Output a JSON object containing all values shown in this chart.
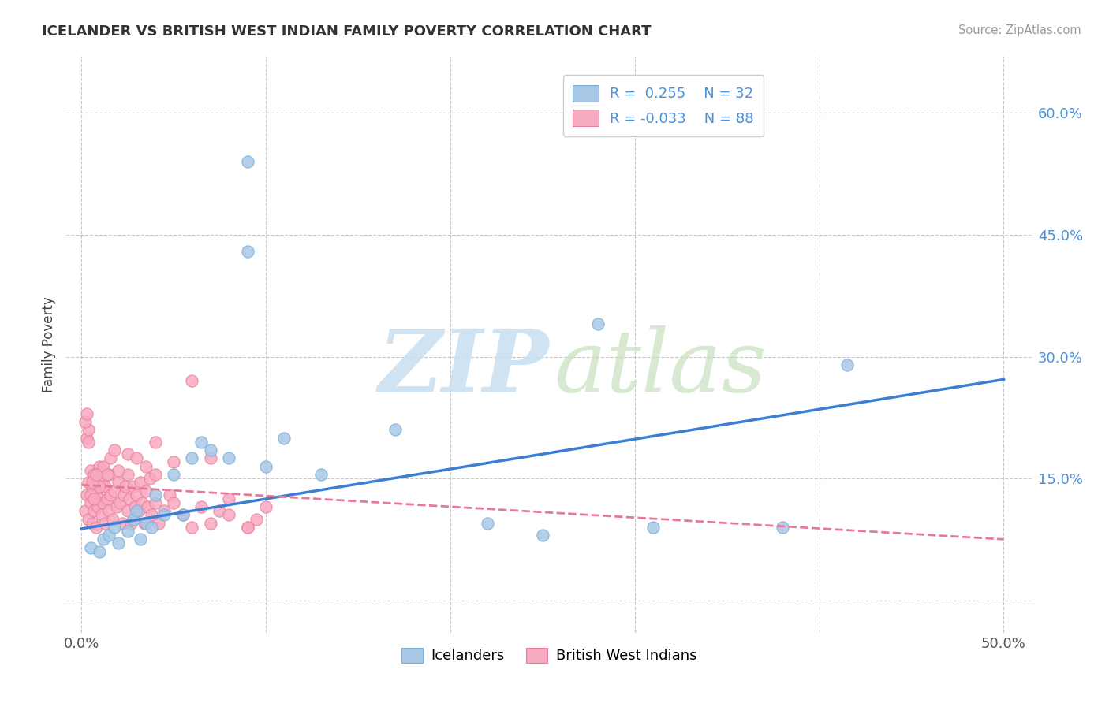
{
  "title": "ICELANDER VS BRITISH WEST INDIAN FAMILY POVERTY CORRELATION CHART",
  "source": "Source: ZipAtlas.com",
  "ylabel": "Family Poverty",
  "y_tick_positions": [
    0.0,
    0.15,
    0.3,
    0.45,
    0.6
  ],
  "y_tick_labels_right": [
    "",
    "15.0%",
    "30.0%",
    "45.0%",
    "60.0%"
  ],
  "x_tick_positions": [
    0.0,
    0.1,
    0.2,
    0.3,
    0.4,
    0.5
  ],
  "x_tick_labels": [
    "0.0%",
    "",
    "",
    "",
    "",
    "50.0%"
  ],
  "xlim": [
    -0.008,
    0.515
  ],
  "ylim": [
    -0.04,
    0.67
  ],
  "icelander_color": "#a8c8e8",
  "icelander_edge": "#7aaed4",
  "bwi_color": "#f8aac0",
  "bwi_edge": "#e8809a",
  "icelander_line_color": "#3a7fd5",
  "bwi_line_color": "#e87898",
  "legend_label_icelander": "Icelanders",
  "legend_label_bwi": "British West Indians",
  "watermark_zip": "ZIP",
  "watermark_atlas": "atlas",
  "ice_line_x0": 0.0,
  "ice_line_y0": 0.088,
  "ice_line_x1": 0.5,
  "ice_line_y1": 0.272,
  "bwi_line_x0": 0.0,
  "bwi_line_y0": 0.142,
  "bwi_line_x1": 0.5,
  "bwi_line_y1": 0.075,
  "icelander_x": [
    0.005,
    0.01,
    0.012,
    0.015,
    0.018,
    0.02,
    0.025,
    0.028,
    0.03,
    0.032,
    0.035,
    0.038,
    0.04,
    0.045,
    0.05,
    0.055,
    0.06,
    0.065,
    0.07,
    0.08,
    0.09,
    0.1,
    0.11,
    0.13,
    0.09,
    0.17,
    0.22,
    0.25,
    0.28,
    0.31,
    0.38,
    0.415
  ],
  "icelander_y": [
    0.065,
    0.06,
    0.075,
    0.08,
    0.09,
    0.07,
    0.085,
    0.1,
    0.11,
    0.075,
    0.095,
    0.09,
    0.13,
    0.105,
    0.155,
    0.105,
    0.175,
    0.195,
    0.185,
    0.175,
    0.54,
    0.165,
    0.2,
    0.155,
    0.43,
    0.21,
    0.095,
    0.08,
    0.34,
    0.09,
    0.09,
    0.29
  ],
  "bwi_x": [
    0.002,
    0.003,
    0.004,
    0.004,
    0.005,
    0.005,
    0.006,
    0.006,
    0.007,
    0.007,
    0.008,
    0.008,
    0.009,
    0.009,
    0.01,
    0.01,
    0.011,
    0.011,
    0.012,
    0.012,
    0.013,
    0.013,
    0.014,
    0.015,
    0.015,
    0.016,
    0.017,
    0.018,
    0.019,
    0.02,
    0.021,
    0.022,
    0.023,
    0.024,
    0.025,
    0.025,
    0.026,
    0.027,
    0.028,
    0.029,
    0.03,
    0.031,
    0.032,
    0.033,
    0.034,
    0.035,
    0.036,
    0.037,
    0.038,
    0.04,
    0.042,
    0.045,
    0.048,
    0.05,
    0.055,
    0.06,
    0.065,
    0.07,
    0.075,
    0.08,
    0.09,
    0.095,
    0.1,
    0.04,
    0.05,
    0.06,
    0.07,
    0.08,
    0.09,
    0.02,
    0.025,
    0.03,
    0.035,
    0.04,
    0.01,
    0.012,
    0.014,
    0.016,
    0.018,
    0.005,
    0.006,
    0.007,
    0.008,
    0.003,
    0.004,
    0.002,
    0.003,
    0.004
  ],
  "bwi_y": [
    0.11,
    0.13,
    0.1,
    0.145,
    0.12,
    0.16,
    0.095,
    0.14,
    0.11,
    0.155,
    0.09,
    0.135,
    0.115,
    0.15,
    0.125,
    0.165,
    0.105,
    0.145,
    0.12,
    0.16,
    0.095,
    0.14,
    0.125,
    0.11,
    0.155,
    0.13,
    0.1,
    0.135,
    0.115,
    0.145,
    0.12,
    0.095,
    0.13,
    0.14,
    0.11,
    0.155,
    0.125,
    0.095,
    0.14,
    0.115,
    0.13,
    0.11,
    0.145,
    0.12,
    0.095,
    0.135,
    0.115,
    0.15,
    0.105,
    0.12,
    0.095,
    0.11,
    0.13,
    0.12,
    0.105,
    0.09,
    0.115,
    0.095,
    0.11,
    0.105,
    0.09,
    0.1,
    0.115,
    0.155,
    0.17,
    0.27,
    0.175,
    0.125,
    0.09,
    0.16,
    0.18,
    0.175,
    0.165,
    0.195,
    0.14,
    0.165,
    0.155,
    0.175,
    0.185,
    0.13,
    0.145,
    0.125,
    0.155,
    0.2,
    0.21,
    0.22,
    0.23,
    0.195
  ]
}
